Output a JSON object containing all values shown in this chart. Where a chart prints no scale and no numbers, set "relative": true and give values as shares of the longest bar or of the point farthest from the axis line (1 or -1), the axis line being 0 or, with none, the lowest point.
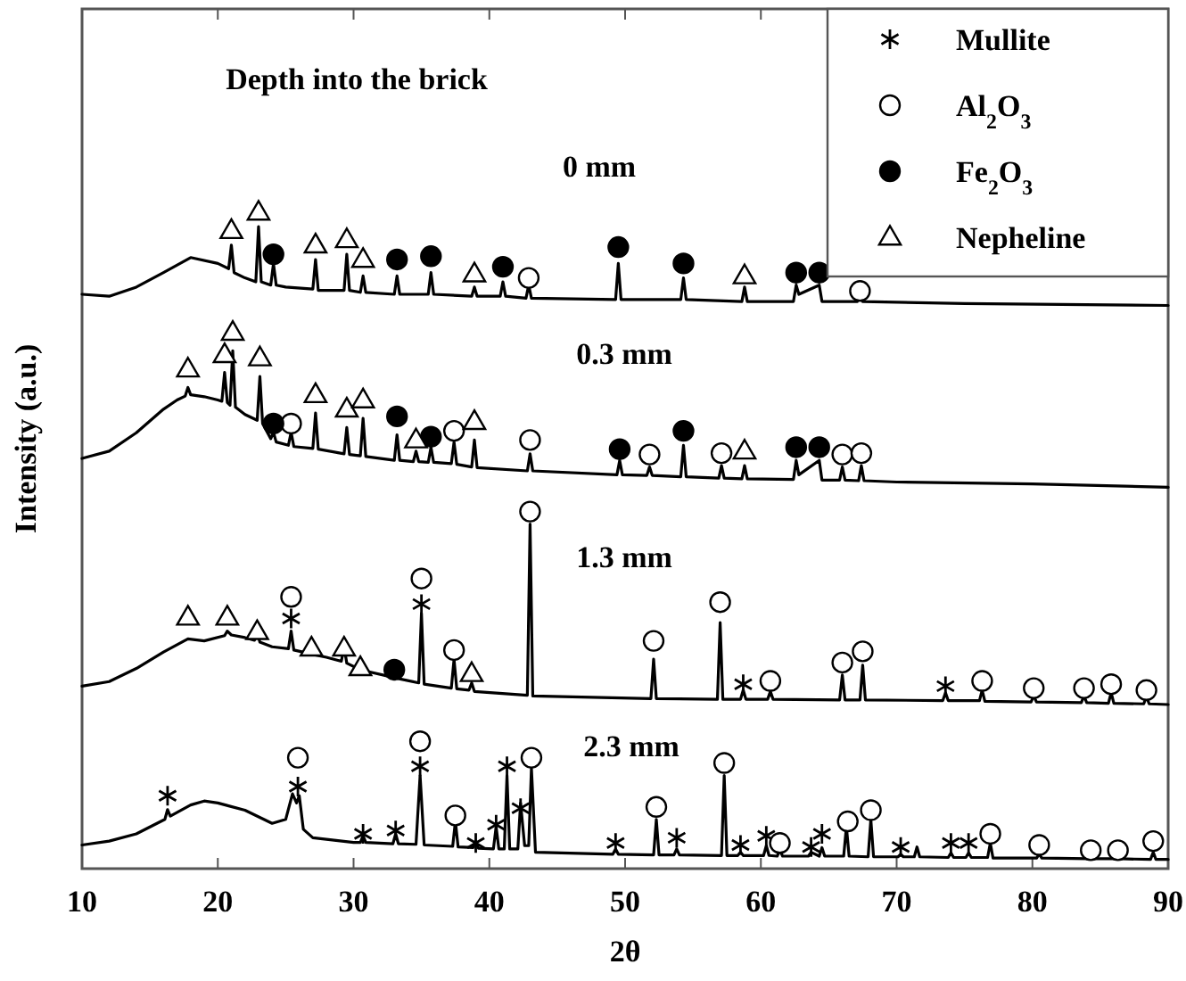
{
  "chart_data": {
    "type": "line",
    "title": "Depth into the brick",
    "xlabel": "2θ",
    "ylabel": "Intensity (a.u.)",
    "xlim": [
      10,
      90
    ],
    "xticks": [
      10,
      20,
      30,
      40,
      50,
      60,
      70,
      80,
      90
    ],
    "relative": true,
    "legend": "top right",
    "annotations": [
      "0 mm",
      "0.3 mm",
      "1.3 mm",
      "2.3 mm"
    ],
    "series": [
      {
        "color": "#000000",
        "x": [
          10,
          12,
          14,
          16,
          18,
          20,
          20.8,
          21,
          21.2,
          22,
          22.8,
          23,
          23.2,
          23.9,
          24.1,
          24.3,
          25,
          27,
          27.2,
          27.4,
          29.3,
          29.5,
          29.7,
          30.5,
          30.7,
          30.9,
          33,
          33.2,
          33.4,
          35.5,
          35.7,
          35.9,
          38.7,
          38.9,
          39.1,
          40.8,
          41,
          41.2,
          42.7,
          42.9,
          43.1,
          49.3,
          49.5,
          49.7,
          54.1,
          54.3,
          54.5,
          58.6,
          58.8,
          59,
          62.4,
          62.6,
          62.8,
          64.3,
          64.5,
          67.1,
          67.3,
          67.5,
          75,
          90
        ],
        "values": [
          0.875,
          0.872,
          0.886,
          0.908,
          0.931,
          0.922,
          0.914,
          0.95,
          0.908,
          0.9,
          0.894,
          0.978,
          0.894,
          0.889,
          0.922,
          0.889,
          0.886,
          0.883,
          0.928,
          0.881,
          0.881,
          0.936,
          0.881,
          0.878,
          0.903,
          0.878,
          0.875,
          0.903,
          0.875,
          0.875,
          0.908,
          0.875,
          0.872,
          0.886,
          0.872,
          0.872,
          0.894,
          0.872,
          0.869,
          0.889,
          0.869,
          0.867,
          0.922,
          0.867,
          0.867,
          0.9,
          0.867,
          0.864,
          0.886,
          0.864,
          0.864,
          0.889,
          0.875,
          0.889,
          0.864,
          0.864,
          0.881,
          0.864,
          0.861,
          0.858
        ]
      },
      {
        "color": "#000000",
        "x": [
          10,
          12,
          14,
          16,
          17,
          17.6,
          17.8,
          18,
          19,
          20,
          20.3,
          20.5,
          20.7,
          20.9,
          21.1,
          21.3,
          22,
          22.9,
          23.1,
          23.3,
          23.9,
          24.1,
          24.3,
          25.2,
          25.4,
          25.6,
          27,
          27.2,
          27.4,
          29.3,
          29.5,
          29.7,
          30.5,
          30.7,
          30.9,
          33,
          33.2,
          33.4,
          34.4,
          34.6,
          34.8,
          35.5,
          35.7,
          35.9,
          37.2,
          37.4,
          37.6,
          38.7,
          38.9,
          39.1,
          42.8,
          43,
          43.2,
          49.4,
          49.6,
          49.8,
          51.6,
          51.8,
          52,
          54.1,
          54.3,
          54.5,
          56.9,
          57.1,
          57.3,
          58.6,
          58.8,
          59,
          62.4,
          62.6,
          62.8,
          64.3,
          64.5,
          65.8,
          66,
          66.2,
          67.2,
          67.4,
          67.6,
          70,
          80,
          90
        ],
        "values": [
          0.625,
          0.636,
          0.664,
          0.7,
          0.714,
          0.72,
          0.733,
          0.722,
          0.719,
          0.714,
          0.712,
          0.756,
          0.71,
          0.706,
          0.789,
          0.703,
          0.692,
          0.683,
          0.75,
          0.678,
          0.655,
          0.665,
          0.65,
          0.645,
          0.665,
          0.643,
          0.64,
          0.694,
          0.639,
          0.632,
          0.672,
          0.631,
          0.629,
          0.686,
          0.628,
          0.622,
          0.661,
          0.622,
          0.62,
          0.636,
          0.62,
          0.619,
          0.642,
          0.619,
          0.617,
          0.65,
          0.616,
          0.612,
          0.653,
          0.611,
          0.606,
          0.632,
          0.606,
          0.6,
          0.622,
          0.6,
          0.599,
          0.612,
          0.599,
          0.597,
          0.645,
          0.597,
          0.595,
          0.614,
          0.595,
          0.594,
          0.614,
          0.594,
          0.593,
          0.622,
          0.6,
          0.622,
          0.592,
          0.592,
          0.612,
          0.592,
          0.591,
          0.614,
          0.591,
          0.589,
          0.586,
          0.581
        ]
      },
      {
        "color": "#000000",
        "x": [
          10,
          12,
          14,
          16,
          17.8,
          19,
          20.5,
          20.7,
          21,
          22,
          22.7,
          22.9,
          23.1,
          24,
          25.2,
          25.4,
          25.6,
          26.7,
          26.9,
          27.1,
          28,
          29.1,
          29.3,
          29.5,
          30.3,
          30.5,
          30.7,
          32.8,
          33,
          33.2,
          34.8,
          35,
          35.2,
          37.2,
          37.4,
          37.6,
          38.5,
          38.7,
          38.9,
          42.8,
          43,
          43.2,
          51.9,
          52.1,
          52.3,
          56.8,
          57,
          57.2,
          58.5,
          58.7,
          58.9,
          60.5,
          60.7,
          60.9,
          65.8,
          66,
          66.2,
          67.3,
          67.5,
          67.7,
          73.4,
          73.6,
          73.8,
          76.1,
          76.3,
          76.5,
          79.9,
          80.1,
          80.3,
          83.6,
          83.8,
          84,
          85.6,
          85.8,
          86,
          88.2,
          88.4,
          88.6,
          90
        ],
        "values": [
          0.278,
          0.285,
          0.305,
          0.33,
          0.35,
          0.347,
          0.355,
          0.362,
          0.356,
          0.352,
          0.348,
          0.36,
          0.345,
          0.338,
          0.335,
          0.362,
          0.333,
          0.328,
          0.342,
          0.326,
          0.322,
          0.316,
          0.338,
          0.313,
          0.305,
          0.318,
          0.302,
          0.292,
          0.297,
          0.29,
          0.283,
          0.389,
          0.281,
          0.275,
          0.319,
          0.274,
          0.272,
          0.283,
          0.27,
          0.264,
          0.525,
          0.263,
          0.259,
          0.319,
          0.259,
          0.258,
          0.375,
          0.258,
          0.258,
          0.272,
          0.258,
          0.258,
          0.27,
          0.258,
          0.257,
          0.295,
          0.257,
          0.257,
          0.31,
          0.257,
          0.256,
          0.268,
          0.256,
          0.256,
          0.272,
          0.255,
          0.254,
          0.263,
          0.254,
          0.253,
          0.263,
          0.253,
          0.252,
          0.268,
          0.252,
          0.251,
          0.262,
          0.251,
          0.25
        ]
      },
      {
        "color": "#000000",
        "x": [
          10,
          12,
          14,
          16.1,
          16.3,
          16.5,
          18,
          19,
          20,
          22,
          24,
          25,
          25.5,
          25.8,
          26,
          26.3,
          27,
          30,
          30.5,
          30.7,
          30.9,
          32.9,
          33.1,
          33.3,
          34.6,
          34.9,
          35.2,
          37.3,
          37.5,
          37.7,
          38.8,
          39,
          39.2,
          40.3,
          40.5,
          40.7,
          41.1,
          41.3,
          41.5,
          42.1,
          42.3,
          42.6,
          42.9,
          43.1,
          43.4,
          49.1,
          49.3,
          49.5,
          52.1,
          52.3,
          52.5,
          53.6,
          53.8,
          54,
          57.1,
          57.3,
          57.5,
          58.3,
          58.5,
          58.7,
          60.2,
          60.4,
          60.6,
          61.2,
          61.4,
          61.6,
          63.5,
          63.7,
          64.3,
          64.5,
          64.7,
          66.1,
          66.3,
          66.5,
          67.9,
          68.1,
          68.3,
          70.1,
          70.3,
          70.5,
          71.3,
          71.5,
          71.7,
          73.8,
          74,
          74.2,
          75.1,
          75.3,
          75.5,
          76.7,
          76.9,
          77.1,
          80.3,
          80.5,
          80.7,
          84.1,
          84.3,
          84.5,
          86.1,
          86.3,
          86.5,
          88.7,
          88.9,
          89.1,
          90
        ],
        "values": [
          0.036,
          0.042,
          0.053,
          0.075,
          0.09,
          0.08,
          0.097,
          0.103,
          0.1,
          0.089,
          0.069,
          0.075,
          0.114,
          0.1,
          0.111,
          0.06,
          0.047,
          0.04,
          0.04,
          0.05,
          0.04,
          0.038,
          0.053,
          0.038,
          0.037,
          0.142,
          0.036,
          0.034,
          0.072,
          0.033,
          0.032,
          0.042,
          0.031,
          0.03,
          0.064,
          0.03,
          0.03,
          0.142,
          0.03,
          0.03,
          0.1,
          0.035,
          0.035,
          0.153,
          0.025,
          0.022,
          0.03,
          0.022,
          0.021,
          0.075,
          0.021,
          0.021,
          0.03,
          0.021,
          0.02,
          0.142,
          0.02,
          0.02,
          0.025,
          0.02,
          0.02,
          0.035,
          0.02,
          0.019,
          0.028,
          0.019,
          0.019,
          0.025,
          0.019,
          0.032,
          0.019,
          0.019,
          0.064,
          0.019,
          0.018,
          0.075,
          0.018,
          0.018,
          0.022,
          0.018,
          0.018,
          0.033,
          0.018,
          0.017,
          0.024,
          0.017,
          0.017,
          0.024,
          0.017,
          0.017,
          0.039,
          0.016,
          0.016,
          0.022,
          0.016,
          0.015,
          0.018,
          0.015,
          0.015,
          0.017,
          0.015,
          0.014,
          0.025,
          0.014,
          0.014
        ]
      },
      {
        "name": "Mullite",
        "type": "scatter",
        "marker": "cross",
        "color": "#000000",
        "x": [
          25.4,
          35,
          58.7,
          73.6,
          16.3,
          25.9,
          30.7,
          33.1,
          34.9,
          39,
          40.5,
          41.3,
          42.3,
          49.3,
          53.8,
          58.5,
          60.4,
          63.7,
          64.5,
          70.3,
          74,
          75.3
        ],
        "values": [
          0.381,
          0.403,
          0.281,
          0.278,
          0.111,
          0.125,
          0.053,
          0.058,
          0.156,
          0.039,
          0.067,
          0.156,
          0.092,
          0.039,
          0.047,
          0.036,
          0.05,
          0.033,
          0.053,
          0.033,
          0.039,
          0.039
        ]
      },
      {
        "name": "Al$_{2}$O$_{3}$",
        "type": "scatter",
        "marker": "circle",
        "color": "#ffffff",
        "x": [
          42.9,
          67.3,
          25.4,
          37.4,
          43,
          51.8,
          57.1,
          66,
          67.4,
          25.4,
          35,
          37.4,
          43,
          52.1,
          57,
          60.7,
          66,
          67.5,
          76.3,
          80.1,
          83.8,
          85.8,
          88.4,
          25.9,
          34.9,
          37.5,
          43.1,
          52.3,
          57.3,
          61.4,
          66.4,
          68.1,
          76.9,
          80.5,
          84.3,
          86.3,
          88.9
        ],
        "values": [
          0.9,
          0.88,
          0.678,
          0.667,
          0.653,
          0.631,
          0.633,
          0.631,
          0.633,
          0.414,
          0.442,
          0.333,
          0.544,
          0.347,
          0.406,
          0.286,
          0.314,
          0.331,
          0.286,
          0.275,
          0.275,
          0.281,
          0.272,
          0.169,
          0.194,
          0.081,
          0.169,
          0.094,
          0.161,
          0.039,
          0.072,
          0.089,
          0.053,
          0.036,
          0.028,
          0.028,
          0.042
        ]
      },
      {
        "name": "Fe$_{2}$O$_{3}$",
        "type": "scatter",
        "marker": "circle",
        "color": "#000000",
        "x": [
          24.1,
          33.2,
          35.7,
          41,
          49.5,
          54.3,
          62.6,
          64.3,
          24.1,
          33.2,
          35.7,
          49.6,
          54.3,
          62.6,
          64.3,
          33
        ],
        "values": [
          0.936,
          0.928,
          0.933,
          0.917,
          0.947,
          0.922,
          0.908,
          0.908,
          0.678,
          0.689,
          0.658,
          0.639,
          0.667,
          0.642,
          0.642,
          0.303
        ]
      },
      {
        "name": "Nepheline",
        "type": "scatter",
        "marker": "triangle",
        "color": "#ffffff",
        "x": [
          21,
          23,
          27.2,
          29.5,
          30.7,
          38.9,
          58.8,
          17.8,
          20.5,
          21.1,
          23.1,
          27.2,
          29.5,
          30.7,
          34.6,
          38.9,
          58.8,
          17.8,
          20.7,
          22.9,
          26.9,
          29.3,
          30.5,
          38.7
        ],
        "values": [
          0.972,
          1,
          0.95,
          0.958,
          0.928,
          0.906,
          0.903,
          0.761,
          0.783,
          0.817,
          0.778,
          0.722,
          0.7,
          0.714,
          0.653,
          0.681,
          0.636,
          0.383,
          0.383,
          0.361,
          0.336,
          0.336,
          0.306,
          0.297
        ]
      }
    ]
  }
}
